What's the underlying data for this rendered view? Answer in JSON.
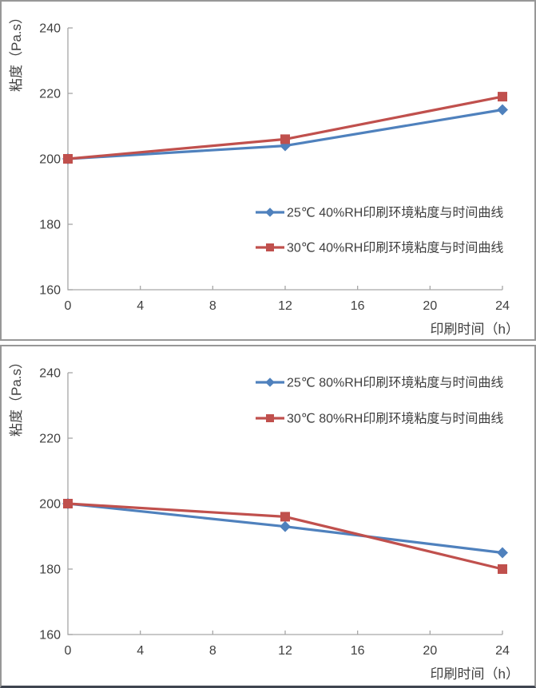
{
  "colors": {
    "series_blue": "#4F81BD",
    "series_red": "#C0504D",
    "axis": "#A6A6A6",
    "tick_label": "#3F3F3F",
    "axis_title": "#3F3F3F",
    "panel_border": "#979797",
    "background": "#FFFFFF"
  },
  "chart_data": [
    {
      "type": "line",
      "title": "",
      "xlabel": "印刷时间（h）",
      "ylabel": "粘度（Pa.s）",
      "x": [
        0,
        12,
        24
      ],
      "xticks": [
        0,
        4,
        8,
        12,
        16,
        20,
        24
      ],
      "yticks": [
        160,
        180,
        200,
        220,
        240
      ],
      "xlim": [
        0,
        24
      ],
      "ylim": [
        160,
        240
      ],
      "grid": false,
      "legend_position": "inside-middle-right",
      "series": [
        {
          "name": "25℃ 40%RH印刷环境粘度与时间曲线",
          "color": "#4F81BD",
          "marker": "diamond",
          "values": [
            200,
            204,
            215
          ]
        },
        {
          "name": "30℃ 40%RH印刷环境粘度与时间曲线",
          "color": "#C0504D",
          "marker": "square",
          "values": [
            200,
            206,
            219
          ]
        }
      ]
    },
    {
      "type": "line",
      "title": "",
      "xlabel": "印刷时间（h）",
      "ylabel": "粘度（Pa.s）",
      "x": [
        0,
        12,
        24
      ],
      "xticks": [
        0,
        4,
        8,
        12,
        16,
        20,
        24
      ],
      "yticks": [
        160,
        180,
        200,
        220,
        240
      ],
      "xlim": [
        0,
        24
      ],
      "ylim": [
        160,
        240
      ],
      "grid": false,
      "legend_position": "inside-top-right",
      "series": [
        {
          "name": "25℃ 80%RH印刷环境粘度与时间曲线",
          "color": "#4F81BD",
          "marker": "diamond",
          "values": [
            200,
            193,
            185
          ]
        },
        {
          "name": "30℃ 80%RH印刷环境粘度与时间曲线",
          "color": "#C0504D",
          "marker": "square",
          "values": [
            200,
            196,
            180
          ]
        }
      ]
    }
  ]
}
